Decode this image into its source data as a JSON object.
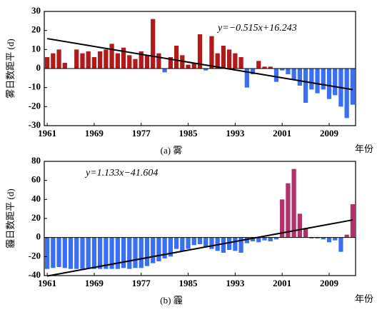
{
  "chart_data": [
    {
      "type": "bar",
      "caption": "(a) 雾",
      "y_label": "雾日数距平 (d)",
      "x_label": "年份",
      "equation": "y=−0.515x+16.243",
      "x": [
        1961,
        1962,
        1963,
        1964,
        1965,
        1966,
        1967,
        1968,
        1969,
        1970,
        1971,
        1972,
        1973,
        1974,
        1975,
        1976,
        1977,
        1978,
        1979,
        1980,
        1981,
        1982,
        1983,
        1984,
        1985,
        1986,
        1987,
        1988,
        1989,
        1990,
        1991,
        1992,
        1993,
        1994,
        1995,
        1996,
        1997,
        1998,
        1999,
        2000,
        2001,
        2002,
        2003,
        2004,
        2005,
        2006,
        2007,
        2008,
        2009,
        2010,
        2011,
        2012,
        2013
      ],
      "values": [
        6,
        8,
        10,
        3,
        0,
        10,
        8,
        9,
        6,
        9,
        10,
        13,
        8,
        11,
        7,
        5,
        9,
        7,
        26,
        8,
        -2,
        6,
        12,
        7,
        2,
        3,
        18,
        -1,
        17,
        8,
        12,
        10,
        8,
        6,
        -10,
        -3,
        4,
        1,
        1,
        -7,
        -1,
        -3,
        -6,
        -9,
        -18,
        -11,
        -13,
        -11,
        -16,
        -14,
        -20,
        -26,
        -19
      ],
      "pos_color": "#b11a1a",
      "neg_color": "#3b6ff2",
      "trend": {
        "x": [
          1961,
          2013
        ],
        "values": [
          15.728,
          -11.052
        ]
      },
      "xlim": [
        1960.5,
        2013.5
      ],
      "xticks": [
        1961,
        1969,
        1977,
        1985,
        1993,
        2001,
        2009
      ],
      "ylim": [
        -30,
        30
      ],
      "yticks": [
        -30,
        -20,
        -10,
        0,
        10,
        20,
        30
      ]
    },
    {
      "type": "bar",
      "caption": "(b) 霾",
      "y_label": "霾日数距平 (d)",
      "x_label": "年份",
      "equation": "y=1.133x−41.604",
      "x": [
        1961,
        1962,
        1963,
        1964,
        1965,
        1966,
        1967,
        1968,
        1969,
        1970,
        1971,
        1972,
        1973,
        1974,
        1975,
        1976,
        1977,
        1978,
        1979,
        1980,
        1981,
        1982,
        1983,
        1984,
        1985,
        1986,
        1987,
        1988,
        1989,
        1990,
        1991,
        1992,
        1993,
        1994,
        1995,
        1996,
        1997,
        1998,
        1999,
        2000,
        2001,
        2002,
        2003,
        2004,
        2005,
        2006,
        2007,
        2008,
        2009,
        2010,
        2011,
        2012,
        2013
      ],
      "values": [
        -33,
        -32,
        -31,
        -32,
        -33,
        -33,
        -33,
        -33,
        -33,
        -33,
        -33,
        -33,
        -33,
        -32,
        -33,
        -32,
        -32,
        -30,
        -27,
        -25,
        -22,
        -20,
        -12,
        -14,
        -12,
        -8,
        -7,
        -10,
        -12,
        -14,
        -16,
        -13,
        -14,
        -16,
        -6,
        -4,
        -5,
        -3,
        -4,
        -2,
        40,
        57,
        72,
        25,
        10,
        -1,
        -1,
        -2,
        -5,
        -3,
        -15,
        3,
        35
      ],
      "pos_color": "#b3306a",
      "neg_color": "#3b6ff2",
      "trend": {
        "x": [
          1961,
          2013
        ],
        "values": [
          -40.471,
          18.445
        ]
      },
      "xlim": [
        1960.5,
        2013.5
      ],
      "xticks": [
        1961,
        1969,
        1977,
        1985,
        1993,
        2001,
        2009
      ],
      "ylim": [
        -40,
        80
      ],
      "yticks": [
        -40,
        -20,
        0,
        20,
        40,
        60,
        80
      ]
    }
  ]
}
